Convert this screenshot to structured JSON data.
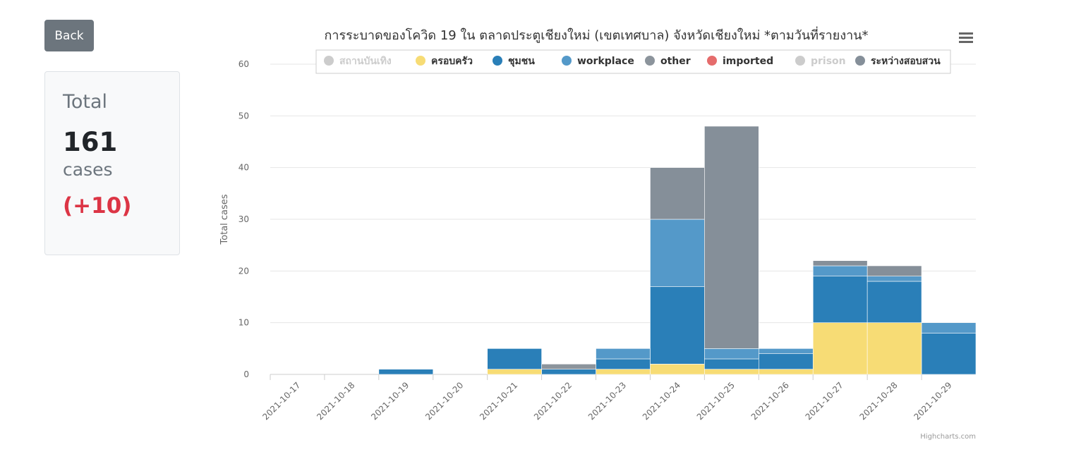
{
  "back_button": {
    "label": "Back"
  },
  "summary": {
    "label": "Total",
    "count": "161",
    "unit": "cases",
    "delta": "(+10)"
  },
  "chart_data": {
    "type": "bar",
    "stacking": "normal",
    "title": "การระบาดของโควิด 19 ใน ตลาดประตูเชียงใหม่ (เขตเทศบาล) จังหวัดเชียงใหม่ *ตามวันที่รายงาน*",
    "ylabel": "Total cases",
    "ylim": [
      0,
      60
    ],
    "yticks": [
      0,
      10,
      20,
      30,
      40,
      50,
      60
    ],
    "grid": true,
    "legend_position": "top",
    "credits": "Highcharts.com",
    "categories": [
      "2021-10-17",
      "2021-10-18",
      "2021-10-19",
      "2021-10-20",
      "2021-10-21",
      "2021-10-22",
      "2021-10-23",
      "2021-10-24",
      "2021-10-25",
      "2021-10-26",
      "2021-10-27",
      "2021-10-28",
      "2021-10-29"
    ],
    "series": [
      {
        "name": "สถานบันเทิง",
        "color": "#cccccc",
        "visible": false,
        "values": [
          0,
          0,
          0,
          0,
          0,
          0,
          0,
          0,
          0,
          0,
          0,
          0,
          0
        ]
      },
      {
        "name": "ครอบครัว",
        "color": "#f7dc75",
        "visible": true,
        "values": [
          0,
          0,
          0,
          0,
          1,
          0,
          1,
          2,
          1,
          1,
          10,
          10,
          0
        ]
      },
      {
        "name": "ชุมชน",
        "color": "#2a7fb8",
        "visible": true,
        "values": [
          0,
          0,
          1,
          0,
          4,
          1,
          2,
          15,
          2,
          3,
          9,
          8,
          8
        ]
      },
      {
        "name": "workplace",
        "color": "#5499c9",
        "visible": true,
        "values": [
          0,
          0,
          0,
          0,
          0,
          0,
          2,
          13,
          2,
          1,
          2,
          1,
          2
        ]
      },
      {
        "name": "other",
        "color": "#8c949c",
        "visible": true,
        "values": [
          0,
          0,
          0,
          0,
          0,
          1,
          0,
          0,
          0,
          0,
          0,
          0,
          0
        ]
      },
      {
        "name": "imported",
        "color": "#e56c6c",
        "visible": true,
        "values": [
          0,
          0,
          0,
          0,
          0,
          0,
          0,
          0,
          0,
          0,
          0,
          0,
          0
        ]
      },
      {
        "name": "prison",
        "color": "#cccccc",
        "visible": false,
        "values": [
          0,
          0,
          0,
          0,
          0,
          0,
          0,
          0,
          0,
          0,
          0,
          0,
          0
        ]
      },
      {
        "name": "ระหว่างสอบสวน",
        "color": "#858f99",
        "visible": true,
        "values": [
          0,
          0,
          0,
          0,
          0,
          0,
          0,
          10,
          43,
          0,
          1,
          2,
          0
        ]
      }
    ]
  }
}
